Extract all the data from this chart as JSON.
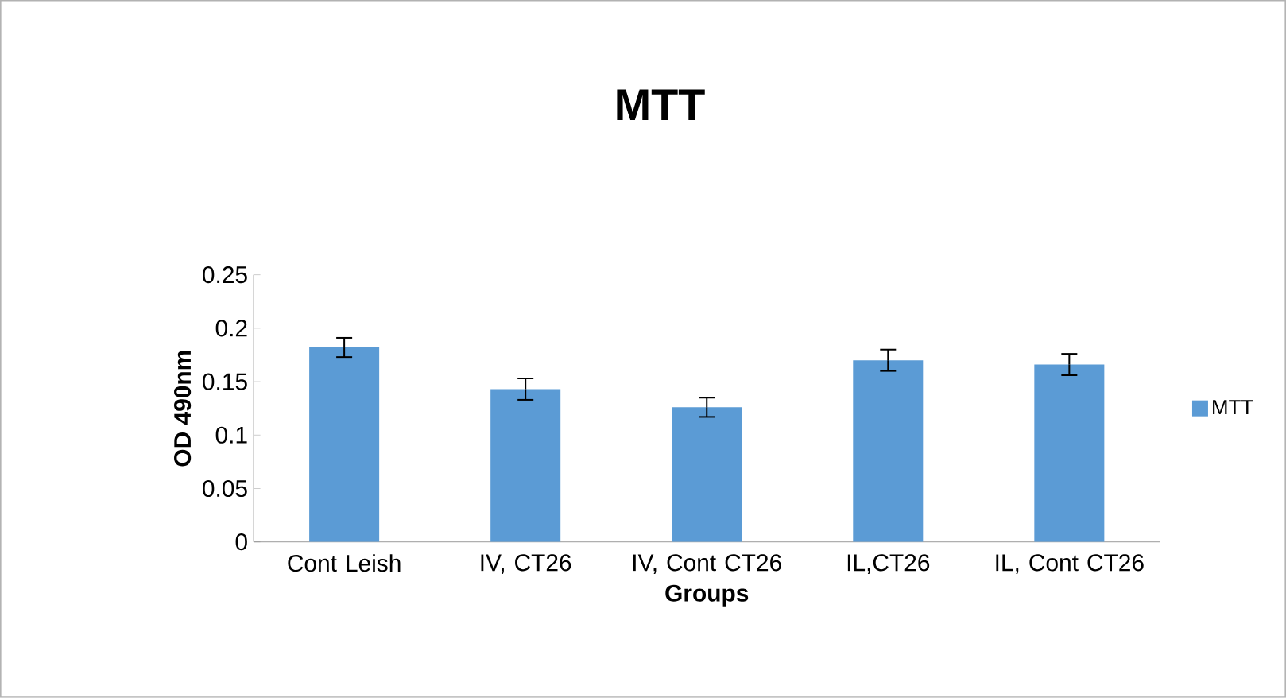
{
  "chart_data": {
    "type": "bar",
    "title": "MTT",
    "xlabel": "Groups",
    "ylabel": "OD 490nm",
    "categories": [
      "Cont Leish",
      "IV, CT26",
      "IV, Cont CT26",
      "IL,CT26",
      "IL, Cont CT26"
    ],
    "series": [
      {
        "name": "MTT",
        "color": "#5b9bd5",
        "values": [
          0.182,
          0.143,
          0.126,
          0.17,
          0.166
        ],
        "errors": [
          0.009,
          0.01,
          0.009,
          0.01,
          0.01
        ]
      }
    ],
    "ylim": [
      0,
      0.25
    ],
    "yticks": [
      0,
      0.05,
      0.1,
      0.15,
      0.2,
      0.25
    ],
    "grid": false,
    "legend": "right"
  }
}
